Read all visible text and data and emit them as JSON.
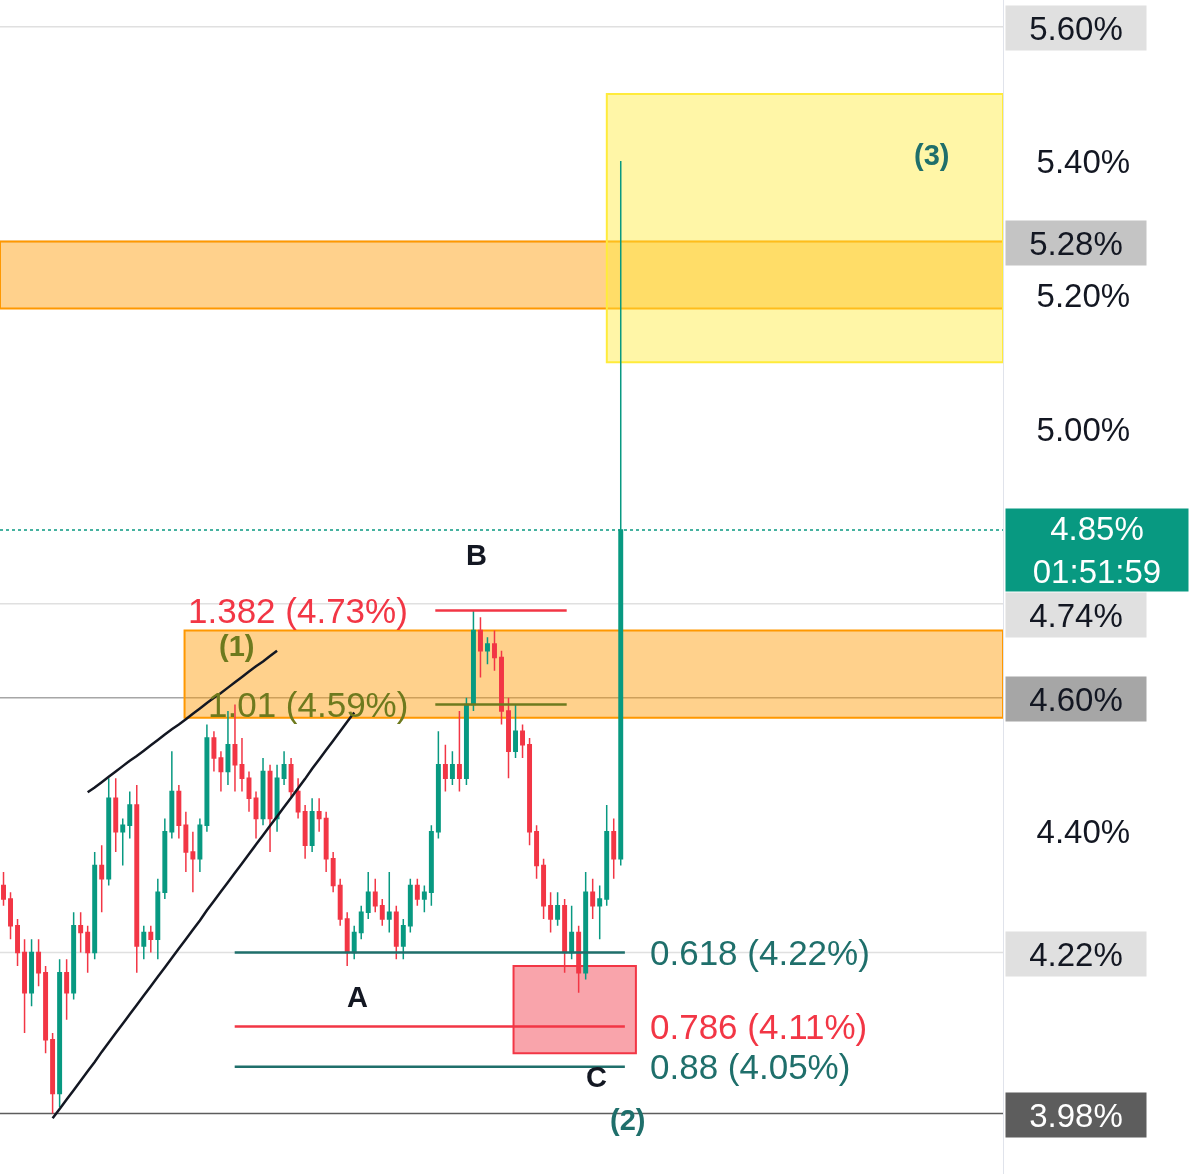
{
  "chart_data": {
    "type": "candlestick",
    "categories": [
      null,
      null,
      null,
      null,
      null,
      null,
      null,
      null,
      null,
      null,
      null,
      null,
      null,
      null,
      null,
      null,
      null,
      null,
      null,
      null,
      null,
      null,
      null,
      null,
      null,
      null,
      null,
      null,
      null,
      null,
      null,
      null,
      null,
      null,
      null,
      null,
      null,
      null,
      null,
      null,
      null,
      null,
      null,
      null,
      null,
      null,
      null,
      null,
      null,
      null,
      null,
      null,
      null,
      null,
      null,
      null,
      null,
      null,
      null,
      null,
      null,
      null,
      null,
      null,
      null,
      null,
      null,
      null,
      null,
      null,
      null,
      null,
      null,
      null,
      null,
      null,
      null,
      null,
      null,
      null,
      null,
      null,
      null,
      null,
      null,
      null,
      null,
      null,
      null,
      null,
      null,
      null,
      null,
      null,
      null,
      null,
      null,
      null,
      null,
      null,
      null,
      null,
      null,
      null,
      null,
      null,
      null,
      null,
      null,
      null,
      null,
      null,
      null,
      null,
      null,
      null,
      null,
      null,
      null,
      null,
      null,
      null,
      null,
      null,
      null,
      null,
      null,
      null,
      null,
      null,
      null,
      null,
      null,
      null,
      null,
      null,
      null,
      null,
      null,
      null,
      null,
      null,
      null
    ],
    "ohlc": [
      [
        4.32,
        4.34,
        4.29,
        4.3
      ],
      [
        4.3,
        4.31,
        4.24,
        4.26
      ],
      [
        4.26,
        4.27,
        4.2,
        4.22
      ],
      [
        4.22,
        4.24,
        4.1,
        4.16
      ],
      [
        4.16,
        4.24,
        4.14,
        4.22
      ],
      [
        4.22,
        4.24,
        4.17,
        4.19
      ],
      [
        4.19,
        4.2,
        4.07,
        4.09
      ],
      [
        4.09,
        4.1,
        3.98,
        4.01
      ],
      [
        4.01,
        4.21,
        3.99,
        4.19
      ],
      [
        4.19,
        4.21,
        4.12,
        4.16
      ],
      [
        4.16,
        4.28,
        4.15,
        4.26
      ],
      [
        4.26,
        4.28,
        4.22,
        4.25
      ],
      [
        4.25,
        4.26,
        4.19,
        4.22
      ],
      [
        4.22,
        4.37,
        4.21,
        4.35
      ],
      [
        4.35,
        4.38,
        4.28,
        4.33
      ],
      [
        4.33,
        4.48,
        4.32,
        4.45
      ],
      [
        4.45,
        4.48,
        4.37,
        4.4
      ],
      [
        4.4,
        4.42,
        4.35,
        4.41
      ],
      [
        4.41,
        4.46,
        4.39,
        4.44
      ],
      [
        4.44,
        4.47,
        4.19,
        4.23
      ],
      [
        4.23,
        4.26,
        4.21,
        4.25
      ],
      [
        4.25,
        4.26,
        4.22,
        4.24
      ],
      [
        4.24,
        4.33,
        4.21,
        4.31
      ],
      [
        4.31,
        4.42,
        4.3,
        4.4
      ],
      [
        4.4,
        4.52,
        4.39,
        4.46
      ],
      [
        4.46,
        4.47,
        4.39,
        4.41
      ],
      [
        4.41,
        4.43,
        4.34,
        4.37
      ],
      [
        4.37,
        4.4,
        4.31,
        4.36
      ],
      [
        4.36,
        4.42,
        4.34,
        4.41
      ],
      [
        4.41,
        4.56,
        4.4,
        4.54
      ],
      [
        4.54,
        4.55,
        4.49,
        4.51
      ],
      [
        4.51,
        4.52,
        4.46,
        4.49
      ],
      [
        4.49,
        4.58,
        4.47,
        4.53
      ],
      [
        4.53,
        4.59,
        4.46,
        4.5
      ],
      [
        4.5,
        4.54,
        4.46,
        4.48
      ],
      [
        4.48,
        4.49,
        4.43,
        4.45
      ],
      [
        4.45,
        4.46,
        4.39,
        4.42
      ],
      [
        4.42,
        4.51,
        4.41,
        4.49
      ],
      [
        4.49,
        4.5,
        4.37,
        4.42
      ],
      [
        4.42,
        4.5,
        4.4,
        4.48
      ],
      [
        4.48,
        4.52,
        4.47,
        4.5
      ],
      [
        4.5,
        4.51,
        4.45,
        4.46
      ],
      [
        4.46,
        4.48,
        4.42,
        4.43
      ],
      [
        4.43,
        4.44,
        4.36,
        4.38
      ],
      [
        4.38,
        4.45,
        4.37,
        4.43
      ],
      [
        4.43,
        4.45,
        4.4,
        4.42
      ],
      [
        4.42,
        4.43,
        4.34,
        4.36
      ],
      [
        4.36,
        4.37,
        4.31,
        4.32
      ],
      [
        4.32,
        4.33,
        4.26,
        4.27
      ],
      [
        4.27,
        4.28,
        4.2,
        4.22
      ],
      [
        4.22,
        4.26,
        4.21,
        4.25
      ],
      [
        4.25,
        4.29,
        4.24,
        4.28
      ],
      [
        4.28,
        4.34,
        4.27,
        4.31
      ],
      [
        4.31,
        4.33,
        4.28,
        4.29
      ],
      [
        4.29,
        4.3,
        4.26,
        4.27
      ],
      [
        4.27,
        4.34,
        4.25,
        4.28
      ],
      [
        4.28,
        4.29,
        4.21,
        4.23
      ],
      [
        4.23,
        4.27,
        4.21,
        4.26
      ],
      [
        4.26,
        4.33,
        4.25,
        4.32
      ],
      [
        4.32,
        4.33,
        4.29,
        4.3
      ],
      [
        4.3,
        4.32,
        4.28,
        4.31
      ],
      [
        4.31,
        4.41,
        4.29,
        4.4
      ],
      [
        4.4,
        4.55,
        4.39,
        4.5
      ],
      [
        4.5,
        4.53,
        4.46,
        4.48
      ],
      [
        4.48,
        4.52,
        4.47,
        4.5
      ],
      [
        4.5,
        4.58,
        4.46,
        4.48
      ],
      [
        4.48,
        4.6,
        4.47,
        4.59
      ],
      [
        4.59,
        4.73,
        4.58,
        4.7
      ],
      [
        4.7,
        4.72,
        4.63,
        4.67
      ],
      [
        4.67,
        4.69,
        4.65,
        4.68
      ],
      [
        4.68,
        4.7,
        4.64,
        4.66
      ],
      [
        4.66,
        4.67,
        4.56,
        4.58
      ],
      [
        4.58,
        4.6,
        4.48,
        4.52
      ],
      [
        4.52,
        4.59,
        4.51,
        4.55
      ],
      [
        4.55,
        4.56,
        4.51,
        4.53
      ],
      [
        4.53,
        4.54,
        4.38,
        4.4
      ],
      [
        4.4,
        4.41,
        4.33,
        4.35
      ],
      [
        4.35,
        4.36,
        4.27,
        4.29
      ],
      [
        4.29,
        4.31,
        4.25,
        4.27
      ],
      [
        4.27,
        4.31,
        4.26,
        4.29
      ],
      [
        4.29,
        4.3,
        4.19,
        4.22
      ],
      [
        4.22,
        4.29,
        4.21,
        4.25
      ],
      [
        4.25,
        4.26,
        4.16,
        4.19
      ],
      [
        4.19,
        4.34,
        4.18,
        4.31
      ],
      [
        4.31,
        4.33,
        4.27,
        4.29
      ],
      [
        4.29,
        4.32,
        4.24,
        4.3
      ],
      [
        4.3,
        4.44,
        4.29,
        4.4
      ],
      [
        4.4,
        4.42,
        4.33,
        4.36
      ],
      [
        4.36,
        5.4,
        4.35,
        4.85
      ],
      null,
      null,
      null,
      null,
      null,
      null,
      null,
      null,
      null,
      null,
      null,
      null,
      null,
      null,
      null,
      null,
      null,
      null,
      null,
      null,
      null,
      null,
      null,
      null,
      null,
      null,
      null,
      null,
      null,
      null,
      null,
      null,
      null,
      null,
      null,
      null,
      null,
      null,
      null,
      null,
      null,
      null,
      null,
      null,
      null,
      null,
      null,
      null,
      null,
      null,
      null,
      null,
      null,
      null
    ],
    "series": [
      {
        "type": "line",
        "color": "#131722",
        "values": [
          null,
          null,
          null,
          null,
          null,
          null,
          null,
          null,
          null,
          null,
          null,
          null,
          4.459,
          4.466,
          4.474,
          4.482,
          4.49,
          4.498,
          4.506,
          4.513,
          4.521,
          4.529,
          4.537,
          4.545,
          4.553,
          4.56,
          4.568,
          4.576,
          4.584,
          4.592,
          4.6,
          4.607,
          4.615,
          4.623,
          4.631,
          4.639,
          4.647,
          4.654,
          4.662,
          4.67,
          null,
          null,
          null,
          null,
          null,
          null,
          null,
          null,
          null,
          null,
          null,
          null,
          null,
          null,
          null,
          null,
          null,
          null,
          null,
          null,
          null,
          null,
          null,
          null,
          null,
          null,
          null,
          null,
          null,
          null,
          null,
          null,
          null,
          null,
          null,
          null,
          null,
          null,
          null,
          null,
          null,
          null,
          null,
          null,
          null,
          null,
          null,
          null,
          null,
          null,
          null,
          null,
          null,
          null,
          null,
          null,
          null,
          null,
          null,
          null,
          null,
          null,
          null,
          null,
          null,
          null,
          null,
          null,
          null,
          null,
          null,
          null,
          null,
          null,
          null,
          null,
          null,
          null,
          null,
          null,
          null,
          null,
          null,
          null,
          null,
          null,
          null,
          null,
          null,
          null,
          null,
          null,
          null,
          null,
          null,
          null,
          null,
          null,
          null,
          null,
          null,
          null,
          null
        ]
      },
      {
        "type": "line",
        "color": "#131722",
        "values": [
          null,
          null,
          null,
          null,
          null,
          null,
          null,
          3.973,
          3.987,
          4.001,
          4.015,
          4.029,
          4.043,
          4.057,
          4.072,
          4.086,
          4.1,
          4.114,
          4.128,
          4.142,
          4.156,
          4.17,
          4.184,
          4.198,
          4.212,
          4.226,
          4.24,
          4.254,
          4.268,
          4.283,
          4.297,
          4.311,
          4.325,
          4.339,
          4.353,
          4.367,
          4.381,
          4.395,
          4.409,
          4.423,
          4.437,
          4.451,
          4.465,
          4.479,
          4.494,
          4.508,
          4.522,
          4.536,
          4.55,
          4.564,
          4.578,
          null,
          null,
          null,
          null,
          null,
          null,
          null,
          null,
          null,
          null,
          null,
          null,
          null,
          null,
          null,
          null,
          null,
          null,
          null,
          null,
          null,
          null,
          null,
          null,
          null,
          null,
          null,
          null,
          null,
          null,
          null,
          null,
          null,
          null,
          null,
          null,
          null,
          null,
          null,
          null,
          null,
          null,
          null,
          null,
          null,
          null,
          null,
          null,
          null,
          null,
          null,
          null,
          null,
          null,
          null,
          null,
          null,
          null,
          null,
          null,
          null,
          null,
          null,
          null,
          null,
          null,
          null,
          null,
          null,
          null,
          null,
          null,
          null,
          null,
          null,
          null,
          null,
          null,
          null,
          null,
          null,
          null,
          null,
          null,
          null,
          null,
          null,
          null,
          null,
          null,
          null,
          null
        ]
      }
    ],
    "ylim": [
      3.89,
      5.64
    ],
    "yticks": [
      {
        "value": 5.4,
        "label": "5.40%"
      },
      {
        "value": 5.2,
        "label": "5.20%"
      },
      {
        "value": 5.0,
        "label": "5.00%"
      },
      {
        "value": 4.4,
        "label": "4.40%"
      }
    ],
    "tick_labels": "y",
    "ref_lines": [
      {
        "axis": "y",
        "value": 5.6,
        "label": "5.60%",
        "color": "#e0e0e0"
      },
      {
        "axis": "y",
        "value": 5.28,
        "label": "5.28%",
        "color": "#c4c4c4"
      },
      {
        "axis": "y",
        "value": 4.85,
        "label": "4.85%\n01:51:59",
        "color": "#089981",
        "line_style": "dotted"
      },
      {
        "axis": "y",
        "value": 4.74,
        "label": "4.74%",
        "color": "#e0e0e0"
      },
      {
        "axis": "y",
        "value": 4.6,
        "label": "4.60%",
        "color": "#a6a6a6"
      },
      {
        "axis": "y",
        "value": 4.22,
        "label": "4.22%",
        "color": "#e0e0e0"
      },
      {
        "axis": "y",
        "value": 3.98,
        "label": "3.98%",
        "color": "#5d5d5d"
      },
      {
        "axis": "y",
        "value": 4.73,
        "label": "1.382 (4.73%)",
        "color": "#f23645"
      },
      {
        "axis": "y",
        "value": 4.59,
        "label": "1.01 (4.59%)",
        "color": "#6e7a1e"
      },
      {
        "axis": "y",
        "value": 4.22,
        "label": "0.618 (4.22%)",
        "color": "#1f6f6b"
      },
      {
        "axis": "y",
        "value": 4.11,
        "label": "0.786 (4.11%)",
        "color": "#f23645"
      },
      {
        "axis": "y",
        "value": 4.05,
        "label": "0.88 (4.05%)",
        "color": "#1f6f6b"
      }
    ],
    "bands": [
      {
        "axis": "y",
        "from": 5.18,
        "to": 5.28,
        "color": "#ff9800"
      },
      {
        "axis": "y",
        "from": 4.57,
        "to": 4.7,
        "color": "#ff9800"
      },
      {
        "axis": "y",
        "from": 5.1,
        "to": 5.5,
        "color": "#ffeb3b"
      },
      {
        "axis": "y",
        "from": 4.07,
        "to": 4.2,
        "color": "#f23645"
      }
    ],
    "annotations": [
      "(3)",
      "B",
      "(1)",
      "A",
      "C",
      "(2)"
    ]
  }
}
